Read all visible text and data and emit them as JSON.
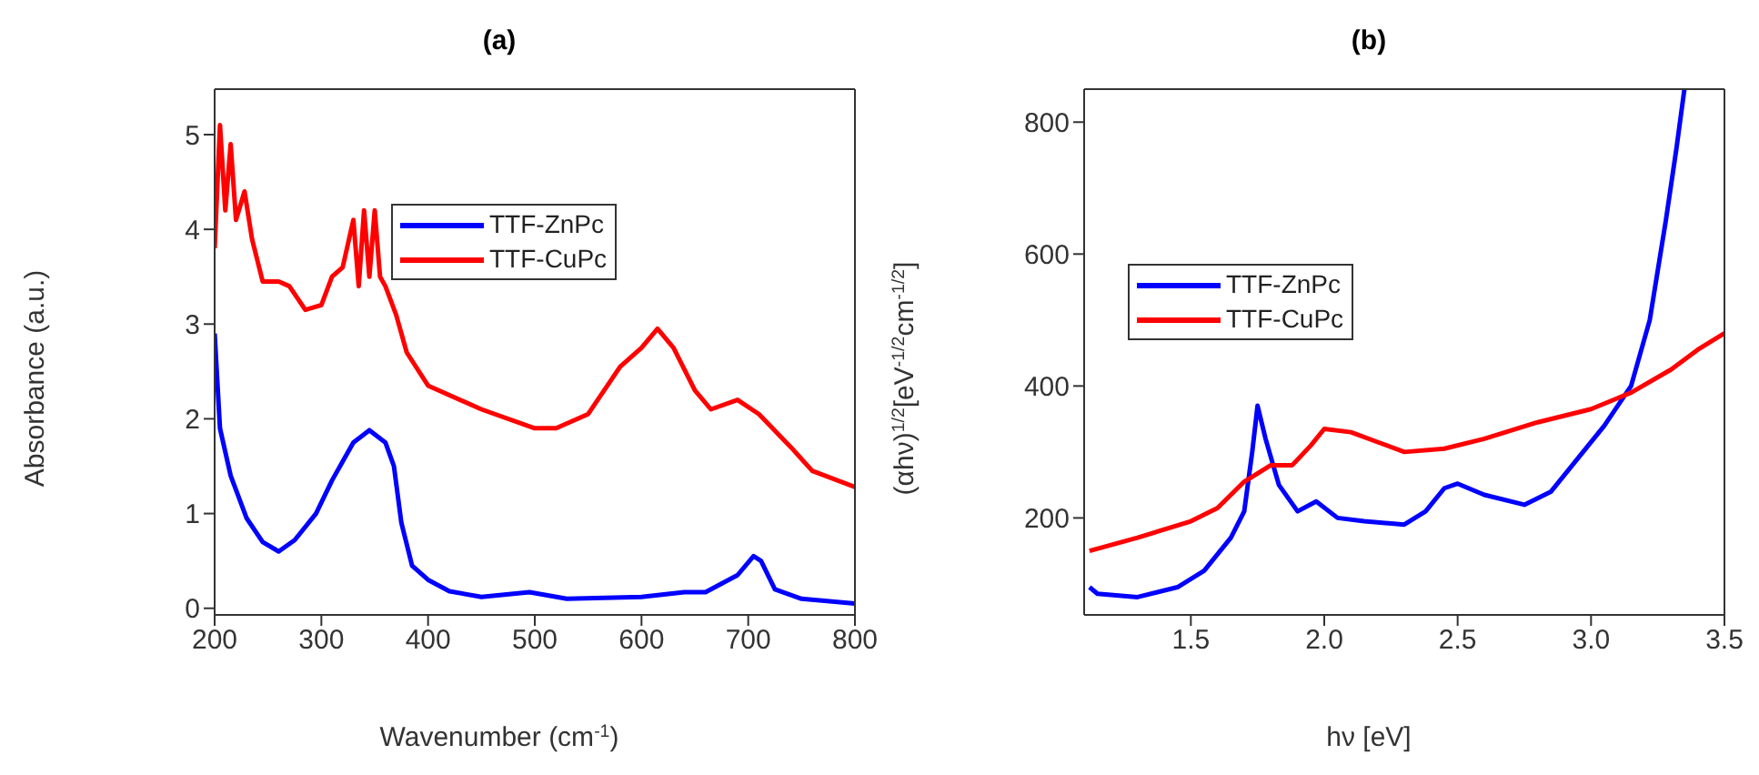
{
  "chart_data": [
    {
      "type": "line",
      "title": "(a)",
      "xlabel": "Wavenumber (cm$^{-1}$)",
      "ylabel": "Absorbance (a.u.)",
      "xlim": [
        200,
        800
      ],
      "ylim": [
        -0.07,
        5.48
      ],
      "xticks": [
        200,
        300,
        400,
        500,
        600,
        700,
        800
      ],
      "yticks": [
        0,
        1,
        2,
        3,
        4,
        5
      ],
      "legend": "top",
      "grid": false,
      "line_style": "solid",
      "series": [
        {
          "name": "TTF-ZnPc",
          "color": "#0000ff",
          "x": [
            200,
            205,
            215,
            230,
            245,
            260,
            275,
            295,
            310,
            330,
            345,
            360,
            368,
            375,
            385,
            400,
            420,
            450,
            495,
            530,
            600,
            640,
            660,
            690,
            705,
            712,
            725,
            750,
            800
          ],
          "values": [
            2.9,
            1.9,
            1.4,
            0.95,
            0.7,
            0.6,
            0.72,
            1.0,
            1.35,
            1.75,
            1.88,
            1.75,
            1.5,
            0.9,
            0.45,
            0.3,
            0.18,
            0.12,
            0.17,
            0.1,
            0.12,
            0.17,
            0.17,
            0.35,
            0.55,
            0.5,
            0.2,
            0.1,
            0.05
          ]
        },
        {
          "name": "TTF-CuPc",
          "color": "#ff0000",
          "x": [
            200,
            205,
            210,
            215,
            220,
            228,
            235,
            245,
            260,
            270,
            285,
            300,
            310,
            320,
            330,
            335,
            340,
            345,
            350,
            355,
            360,
            370,
            380,
            400,
            450,
            500,
            520,
            550,
            580,
            600,
            615,
            630,
            650,
            665,
            690,
            710,
            740,
            760,
            800
          ],
          "values": [
            3.8,
            5.1,
            4.2,
            4.9,
            4.1,
            4.4,
            3.9,
            3.45,
            3.45,
            3.4,
            3.15,
            3.2,
            3.5,
            3.6,
            4.1,
            3.4,
            4.2,
            3.5,
            4.2,
            3.5,
            3.4,
            3.1,
            2.7,
            2.35,
            2.1,
            1.9,
            1.9,
            2.05,
            2.55,
            2.75,
            2.95,
            2.75,
            2.3,
            2.1,
            2.2,
            2.05,
            1.7,
            1.45,
            1.28
          ]
        }
      ]
    },
    {
      "type": "line",
      "title": "(b)",
      "xlabel": "hν [eV]",
      "ylabel": "(αhν)$^{1/2}$[eV$^{-1/2}$cm$^{-1/2}$]",
      "xlim": [
        1.1,
        3.5
      ],
      "ylim": [
        53,
        850
      ],
      "xticks": [
        {
          "value": 1.5,
          "label": "1.5"
        },
        {
          "value": 2,
          "label": "2.0"
        },
        {
          "value": 2.5,
          "label": "2.5"
        },
        {
          "value": 3,
          "label": "3.0"
        },
        {
          "value": 3.5,
          "label": "3.5"
        }
      ],
      "yticks": [
        200,
        400,
        600,
        800
      ],
      "legend": "left",
      "grid": false,
      "line_style": "solid",
      "series": [
        {
          "name": "TTF-ZnPc",
          "color": "#0000ff",
          "x": [
            1.12,
            1.15,
            1.3,
            1.45,
            1.55,
            1.65,
            1.7,
            1.73,
            1.75,
            1.78,
            1.83,
            1.9,
            1.97,
            2.05,
            2.15,
            2.3,
            2.38,
            2.45,
            2.5,
            2.6,
            2.75,
            2.85,
            2.95,
            3.05,
            3.15,
            3.22,
            3.28,
            3.32,
            3.35
          ],
          "values": [
            95,
            85,
            80,
            95,
            120,
            170,
            210,
            300,
            370,
            320,
            250,
            210,
            225,
            200,
            195,
            190,
            210,
            245,
            252,
            235,
            220,
            240,
            290,
            340,
            400,
            500,
            650,
            760,
            850
          ]
        },
        {
          "name": "TTF-CuPc",
          "color": "#ff0000",
          "x": [
            1.12,
            1.3,
            1.5,
            1.6,
            1.7,
            1.8,
            1.88,
            1.95,
            2.0,
            2.1,
            2.2,
            2.3,
            2.45,
            2.6,
            2.8,
            3.0,
            3.15,
            3.3,
            3.4,
            3.5
          ],
          "values": [
            150,
            170,
            195,
            215,
            255,
            280,
            280,
            310,
            335,
            330,
            315,
            300,
            305,
            320,
            345,
            365,
            390,
            425,
            455,
            480
          ]
        }
      ]
    }
  ]
}
